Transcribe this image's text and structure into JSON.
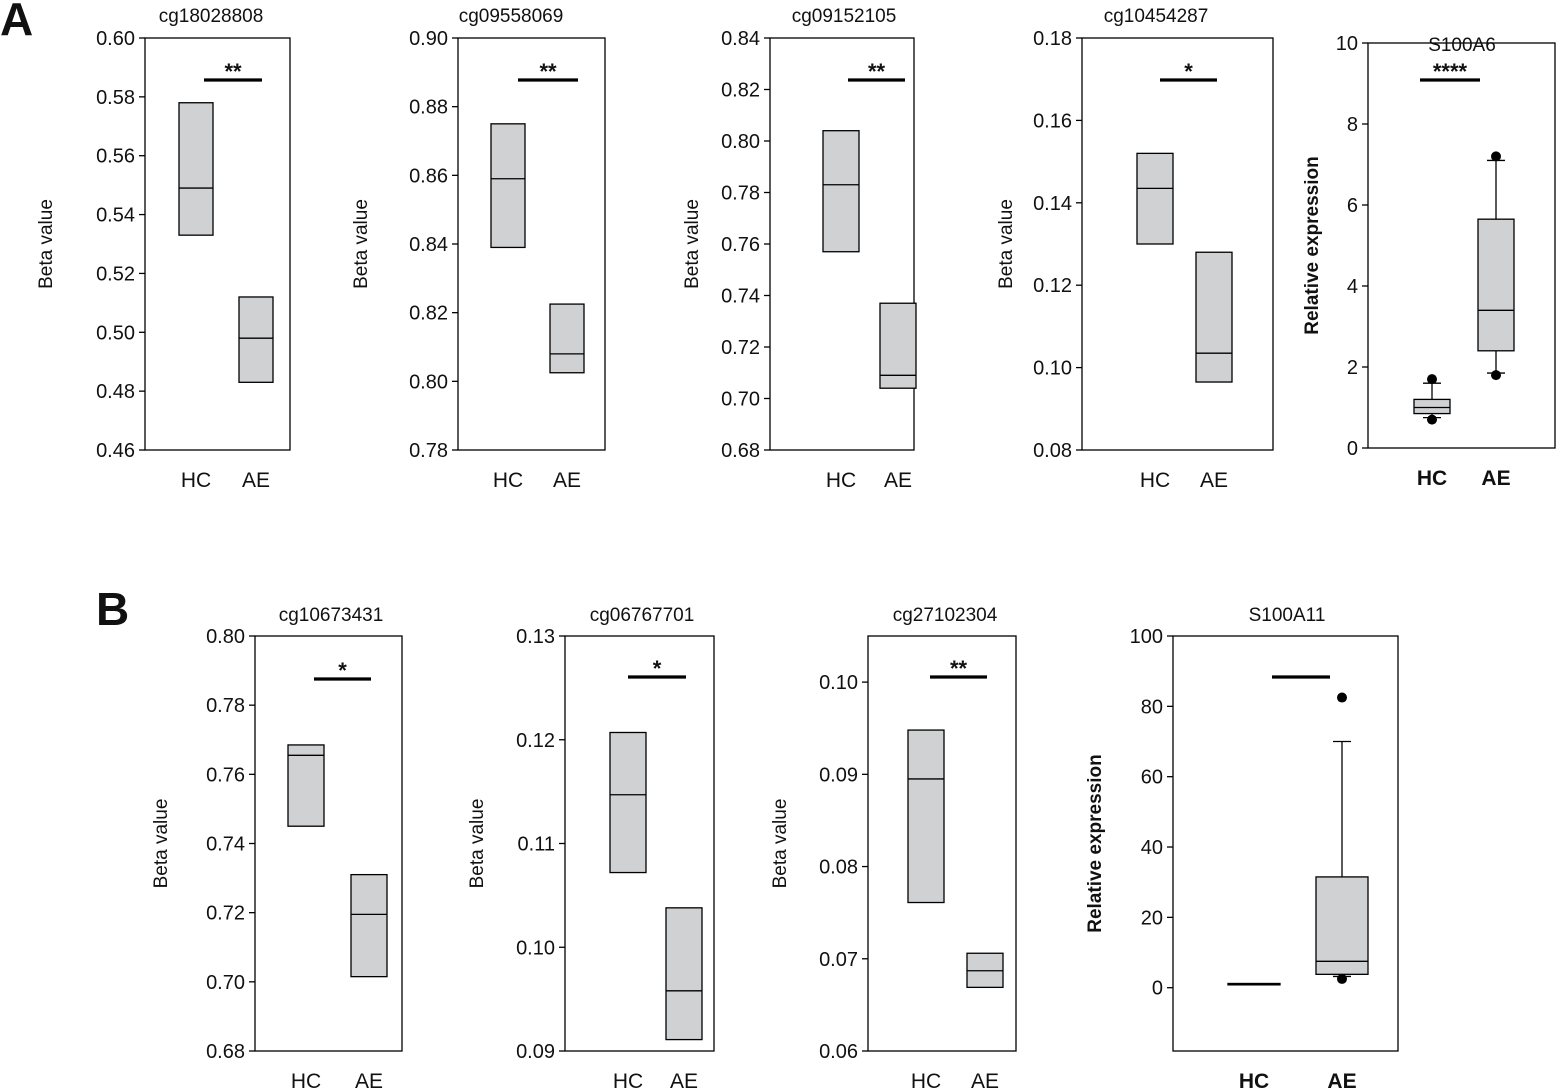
{
  "panels": [
    {
      "letter": "A"
    },
    {
      "letter": "B"
    }
  ],
  "chart_data": [
    {
      "type": "box",
      "panel": "A",
      "title": "cg18028808",
      "ylabel": "Beta value",
      "ylim": [
        0.46,
        0.6
      ],
      "yticks": [
        "0.46",
        "0.48",
        "0.50",
        "0.52",
        "0.54",
        "0.56",
        "0.58",
        "0.60"
      ],
      "categories": [
        "HC",
        "AE"
      ],
      "boxes": [
        {
          "q1": 0.533,
          "median": 0.549,
          "q3": 0.578
        },
        {
          "q1": 0.483,
          "median": 0.498,
          "q3": 0.512
        }
      ],
      "significance": "**"
    },
    {
      "type": "box",
      "panel": "A",
      "title": "cg09558069",
      "ylabel": "Beta value",
      "ylim": [
        0.78,
        0.9
      ],
      "yticks": [
        "0.78",
        "0.80",
        "0.82",
        "0.84",
        "0.86",
        "0.88",
        "0.90"
      ],
      "categories": [
        "HC",
        "AE"
      ],
      "boxes": [
        {
          "q1": 0.839,
          "median": 0.859,
          "q3": 0.875
        },
        {
          "q1": 0.8025,
          "median": 0.808,
          "q3": 0.8225
        }
      ],
      "significance": "**"
    },
    {
      "type": "box",
      "panel": "A",
      "title": "cg09152105",
      "ylabel": "Beta value",
      "ylim": [
        0.68,
        0.84
      ],
      "yticks": [
        "0.68",
        "0.70",
        "0.72",
        "0.74",
        "0.76",
        "0.78",
        "0.80",
        "0.82",
        "0.84"
      ],
      "categories": [
        "HC",
        "AE"
      ],
      "boxes": [
        {
          "q1": 0.757,
          "median": 0.783,
          "q3": 0.804
        },
        {
          "q1": 0.704,
          "median": 0.709,
          "q3": 0.737
        }
      ],
      "significance": "**"
    },
    {
      "type": "box",
      "panel": "A",
      "title": "cg10454287",
      "ylabel": "Beta value",
      "ylim": [
        0.08,
        0.18
      ],
      "yticks": [
        "0.08",
        "0.10",
        "0.12",
        "0.14",
        "0.16",
        "0.18"
      ],
      "categories": [
        "HC",
        "AE"
      ],
      "boxes": [
        {
          "q1": 0.13,
          "median": 0.1435,
          "q3": 0.152
        },
        {
          "q1": 0.0965,
          "median": 0.1035,
          "q3": 0.128
        }
      ],
      "significance": "*"
    },
    {
      "type": "box",
      "panel": "A",
      "title": "S100A6",
      "ylabel": "Relative expression",
      "bold_labels": true,
      "ylim": [
        0,
        10
      ],
      "yticks": [
        "0",
        "2",
        "4",
        "6",
        "8",
        "10"
      ],
      "categories": [
        "HC",
        "AE"
      ],
      "boxes": [
        {
          "whislo": 0.75,
          "q1": 0.85,
          "median": 1.0,
          "q3": 1.2,
          "whishi": 1.6,
          "outliers": [
            0.7,
            1.7
          ]
        },
        {
          "whislo": 1.85,
          "q1": 2.4,
          "median": 3.4,
          "q3": 5.65,
          "whishi": 7.1,
          "outliers": [
            1.8,
            7.2
          ]
        }
      ],
      "significance": "****"
    },
    {
      "type": "box",
      "panel": "B",
      "title": "cg10673431",
      "ylabel": "Beta value",
      "ylim": [
        0.68,
        0.8
      ],
      "yticks": [
        "0.68",
        "0.70",
        "0.72",
        "0.74",
        "0.76",
        "0.78",
        "0.80"
      ],
      "categories": [
        "HC",
        "AE"
      ],
      "boxes": [
        {
          "q1": 0.745,
          "median": 0.7655,
          "q3": 0.7685
        },
        {
          "q1": 0.7015,
          "median": 0.7195,
          "q3": 0.731
        }
      ],
      "significance": "*"
    },
    {
      "type": "box",
      "panel": "B",
      "title": "cg06767701",
      "ylabel": "Beta value",
      "ylim": [
        0.09,
        0.13
      ],
      "yticks": [
        "0.09",
        "0.10",
        "0.11",
        "0.12",
        "0.13"
      ],
      "categories": [
        "HC",
        "AE"
      ],
      "boxes": [
        {
          "q1": 0.1072,
          "median": 0.1147,
          "q3": 0.1207
        },
        {
          "q1": 0.0911,
          "median": 0.0958,
          "q3": 0.1038
        }
      ],
      "significance": "*"
    },
    {
      "type": "box",
      "panel": "B",
      "title": "cg27102304",
      "ylabel": "Beta value",
      "ylim": [
        0.06,
        0.105
      ],
      "yticks": [
        "0.06",
        "0.07",
        "0.08",
        "0.09",
        "0.10"
      ],
      "categories": [
        "HC",
        "AE"
      ],
      "boxes": [
        {
          "q1": 0.0761,
          "median": 0.0895,
          "q3": 0.0948
        },
        {
          "q1": 0.0669,
          "median": 0.0687,
          "q3": 0.0706
        }
      ],
      "significance": "**"
    },
    {
      "type": "box",
      "panel": "B",
      "title": "S100A11",
      "ylabel": "Relative expression",
      "bold_labels": true,
      "ylim": [
        -18,
        100
      ],
      "yticks": [
        "0",
        "20",
        "40",
        "60",
        "80",
        "100"
      ],
      "categories": [
        "HC",
        "AE"
      ],
      "boxes": [
        {
          "q1": 0.8,
          "median": 1.0,
          "q3": 1.2
        },
        {
          "whislo": 3.2,
          "q1": 3.8,
          "median": 7.5,
          "q3": 31.5,
          "whishi": 70,
          "outliers": [
            2.5,
            82.5
          ]
        }
      ],
      "significance": ""
    }
  ]
}
